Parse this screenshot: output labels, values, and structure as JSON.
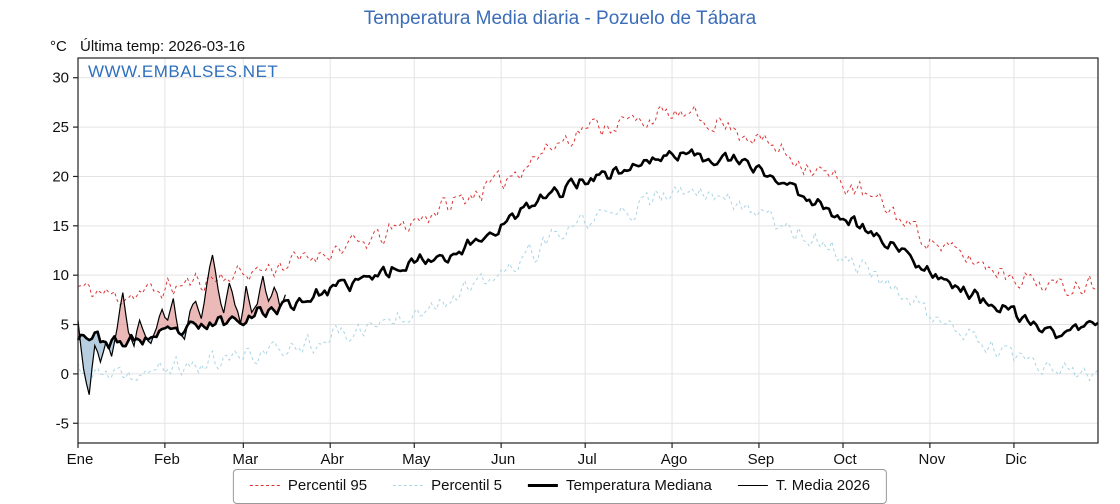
{
  "title": "Temperatura Media diaria - Pozuelo de Tábara",
  "unit": "°C",
  "last_temp_label": "Última temp: 2026-03-16",
  "watermark": "WWW.EMBALSES.NET",
  "colors": {
    "title": "#3b6db8",
    "watermark": "#2e6fbe",
    "p95": "#dd3333",
    "p5": "#a9d4e4",
    "median": "#000000",
    "t2026": "#000000",
    "fill_above": "#e08a8a",
    "fill_below": "#86aecb",
    "grid": "#e3e3e3",
    "axis": "#222222"
  },
  "chart_data": {
    "type": "line",
    "title": "Temperatura Media diaria - Pozuelo de Tábara",
    "ylabel": "°C",
    "annotation": "Última temp: 2026-03-16",
    "x_axis": {
      "months": [
        "Ene",
        "Feb",
        "Mar",
        "Abr",
        "May",
        "Jun",
        "Jul",
        "Ago",
        "Sep",
        "Oct",
        "Nov",
        "Dic"
      ],
      "month_start_days": [
        1,
        32,
        60,
        91,
        121,
        152,
        182,
        213,
        244,
        274,
        305,
        335
      ],
      "days_in_year": 365
    },
    "y_axis": {
      "ticks": [
        -5,
        0,
        5,
        10,
        15,
        20,
        25,
        30
      ],
      "range": [
        -7,
        32
      ],
      "grid": true
    },
    "legend_position": "bottom",
    "legend": [
      {
        "label": "Percentil 95",
        "series": "p95"
      },
      {
        "label": "Percentil 5",
        "series": "p5"
      },
      {
        "label": "Temperatura Mediana",
        "series": "median"
      },
      {
        "label": "T. Media 2026",
        "series": "t2026"
      }
    ],
    "series": {
      "p95": {
        "name": "Percentil 95",
        "style": "dashed",
        "color": "#dd3333",
        "width": 1,
        "anchor_days": [
          1,
          15,
          32,
          46,
          60,
          74,
          91,
          106,
          121,
          136,
          152,
          167,
          182,
          197,
          213,
          228,
          244,
          259,
          274,
          289,
          305,
          320,
          335,
          350,
          365
        ],
        "anchor_values": [
          8.8,
          7.8,
          8.6,
          9.5,
          10.2,
          11.0,
          12.5,
          13.5,
          15.5,
          17.5,
          19.5,
          22.5,
          25.0,
          25.5,
          26.3,
          25.6,
          23.8,
          21.5,
          19.3,
          17.0,
          13.5,
          11.5,
          10.0,
          8.8,
          9.3
        ],
        "jitter": 1.3,
        "seed": 11
      },
      "p5": {
        "name": "Percentil 5",
        "style": "dashed",
        "color": "#a9d4e4",
        "width": 1,
        "anchor_days": [
          1,
          15,
          32,
          46,
          60,
          74,
          91,
          106,
          121,
          136,
          152,
          167,
          182,
          197,
          213,
          228,
          244,
          259,
          274,
          289,
          305,
          320,
          335,
          350,
          365
        ],
        "anchor_values": [
          0.3,
          -0.5,
          0.5,
          1.0,
          1.8,
          2.5,
          3.8,
          4.8,
          6.5,
          8.0,
          10.0,
          13.0,
          15.5,
          16.5,
          18.2,
          18.5,
          16.5,
          14.3,
          12.0,
          9.5,
          6.0,
          3.5,
          1.5,
          0.2,
          -0.5
        ],
        "jitter": 1.3,
        "seed": 37
      },
      "median": {
        "name": "Temperatura Mediana",
        "style": "solid",
        "color": "#000000",
        "width": 2.6,
        "anchor_days": [
          1,
          15,
          32,
          46,
          60,
          74,
          91,
          106,
          121,
          136,
          152,
          167,
          182,
          197,
          213,
          228,
          244,
          259,
          274,
          289,
          305,
          320,
          335,
          350,
          365
        ],
        "anchor_values": [
          4.2,
          3.0,
          4.0,
          4.8,
          5.8,
          6.8,
          8.5,
          9.8,
          11.5,
          12.2,
          15.0,
          17.8,
          19.8,
          20.8,
          22.3,
          22.0,
          20.8,
          18.2,
          16.0,
          13.5,
          10.5,
          8.0,
          6.0,
          4.0,
          5.2
        ],
        "jitter": 0.9,
        "seed": 23
      },
      "t2026": {
        "name": "T. Media 2026",
        "style": "solid",
        "color": "#000000",
        "width": 1.2,
        "last_day": 75,
        "jitter": 0.5,
        "seed": 5,
        "points": [
          [
            1,
            5.2
          ],
          [
            3,
            0.5
          ],
          [
            5,
            -2.0
          ],
          [
            7,
            2.8
          ],
          [
            9,
            1.2
          ],
          [
            11,
            3.0
          ],
          [
            13,
            2.0
          ],
          [
            15,
            4.8
          ],
          [
            17,
            8.2
          ],
          [
            19,
            4.0
          ],
          [
            21,
            3.2
          ],
          [
            23,
            5.5
          ],
          [
            25,
            4.2
          ],
          [
            27,
            2.8
          ],
          [
            29,
            5.0
          ],
          [
            31,
            6.5
          ],
          [
            33,
            5.2
          ],
          [
            35,
            7.8
          ],
          [
            37,
            4.0
          ],
          [
            39,
            3.2
          ],
          [
            41,
            6.2
          ],
          [
            43,
            7.5
          ],
          [
            45,
            5.5
          ],
          [
            47,
            9.0
          ],
          [
            49,
            12.3
          ],
          [
            51,
            8.5
          ],
          [
            53,
            6.0
          ],
          [
            55,
            9.5
          ],
          [
            57,
            7.0
          ],
          [
            59,
            5.2
          ],
          [
            61,
            8.8
          ],
          [
            63,
            6.2
          ],
          [
            65,
            7.5
          ],
          [
            67,
            9.8
          ],
          [
            69,
            7.2
          ],
          [
            71,
            8.8
          ],
          [
            73,
            6.8
          ],
          [
            75,
            7.8
          ]
        ]
      }
    }
  }
}
